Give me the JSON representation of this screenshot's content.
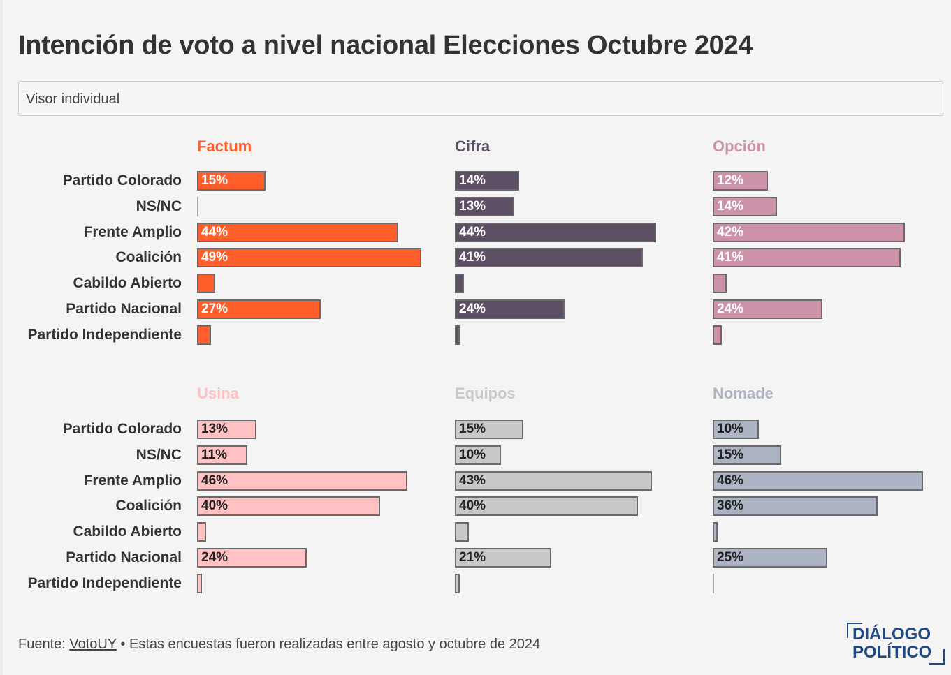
{
  "header": {
    "title": "Intención de voto a nivel nacional Elecciones Octubre 2024",
    "selector_value": "Visor individual"
  },
  "footer": {
    "source_prefix": "Fuente: ",
    "source_link": "VotoUY",
    "note": " • Estas encuestas fueron realizadas entre agosto y octubre de 2024"
  },
  "logo": {
    "line1": "DIÁLOGO",
    "line2": "POLÍTICO",
    "color": "#1f4a86"
  },
  "chart_data": {
    "type": "bar",
    "orientation": "horizontal",
    "layout": "small-multiples 3x2",
    "categories": [
      "Partido Colorado",
      "NS/NC",
      "Frente Amplio",
      "Coalición",
      "Cabildo Abierto",
      "Partido Nacional",
      "Partido Independiente"
    ],
    "xlim": [
      0,
      50
    ],
    "grid": false,
    "series": [
      {
        "name": "Factum",
        "color": "#ff5e2a",
        "title_color": "#ff5e2a",
        "label_color": "#ffffff",
        "values": [
          15,
          0,
          44,
          49,
          4,
          27,
          3
        ],
        "labels": [
          "15%",
          "",
          "44%",
          "49%",
          "",
          "27%",
          ""
        ]
      },
      {
        "name": "Cifra",
        "color": "#5d5064",
        "title_color": "#5d5064",
        "label_color": "#ffffff",
        "values": [
          14,
          13,
          44,
          41,
          2,
          24,
          1
        ],
        "labels": [
          "14%",
          "13%",
          "44%",
          "41%",
          "",
          "24%",
          ""
        ]
      },
      {
        "name": "Opción",
        "color": "#cc92aa",
        "title_color": "#cc92aa",
        "label_color": "#ffffff",
        "values": [
          12,
          14,
          42,
          41,
          3,
          24,
          2
        ],
        "labels": [
          "12%",
          "14%",
          "42%",
          "41%",
          "",
          "24%",
          ""
        ]
      },
      {
        "name": "Usina",
        "color": "#ffc1c1",
        "title_color": "#ffc1c1",
        "label_color": "#222222",
        "values": [
          13,
          11,
          46,
          40,
          2,
          24,
          1
        ],
        "labels": [
          "13%",
          "11%",
          "46%",
          "40%",
          "",
          "24%",
          ""
        ]
      },
      {
        "name": "Equipos",
        "color": "#c9c9c9",
        "title_color": "#c9c9c9",
        "label_color": "#222222",
        "values": [
          15,
          10,
          43,
          40,
          3,
          21,
          1
        ],
        "labels": [
          "15%",
          "10%",
          "43%",
          "40%",
          "",
          "21%",
          ""
        ]
      },
      {
        "name": "Nomade",
        "color": "#adb5c5",
        "title_color": "#adb5c5",
        "label_color": "#222222",
        "values": [
          10,
          15,
          46,
          36,
          1,
          25,
          0
        ],
        "labels": [
          "10%",
          "15%",
          "46%",
          "36%",
          "",
          "25%",
          ""
        ]
      }
    ]
  }
}
